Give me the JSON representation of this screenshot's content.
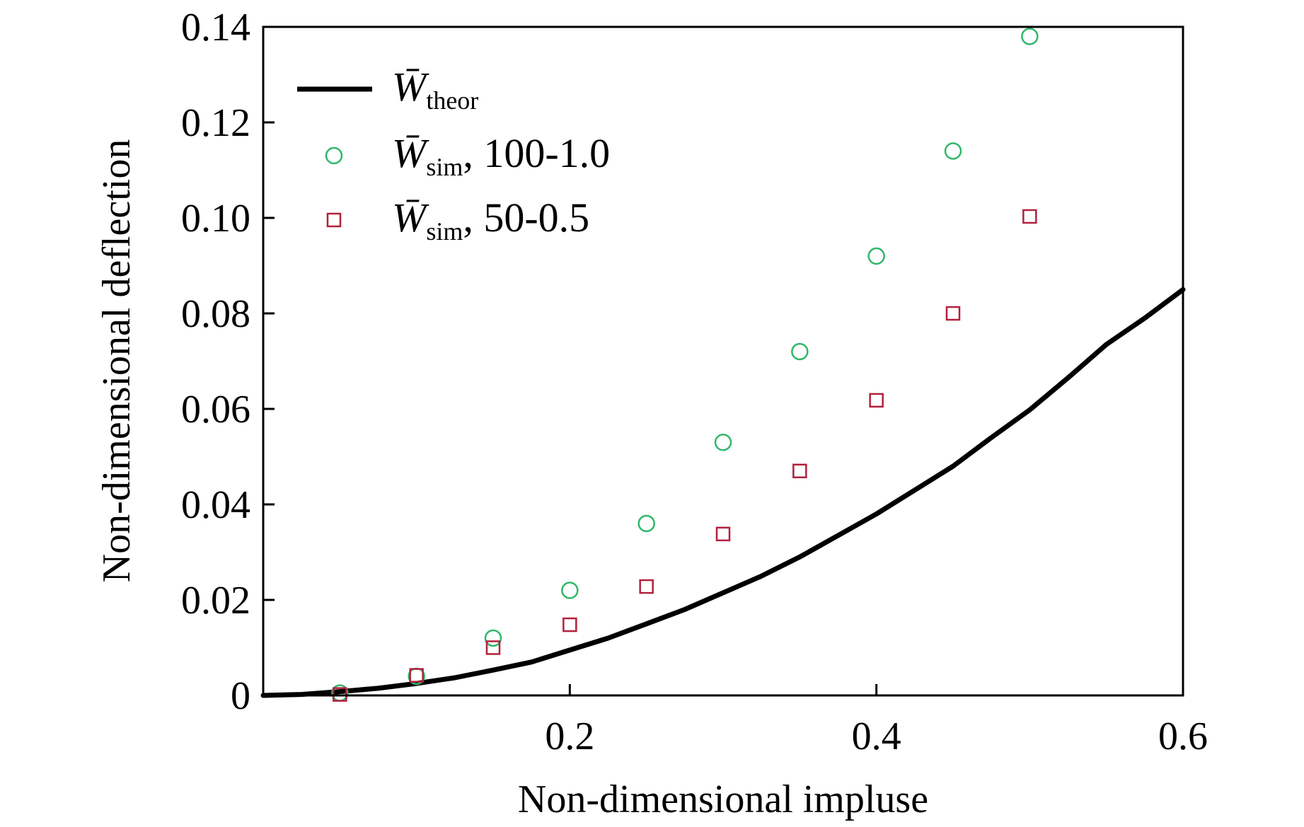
{
  "chart_data": {
    "type": "scatter",
    "xlabel": "Non-dimensional impluse",
    "ylabel": "Non-dimensional deflection",
    "xlim": [
      0,
      0.6
    ],
    "ylim": [
      0,
      0.14
    ],
    "xticks": [
      {
        "value": 0.2,
        "label": "0.2"
      },
      {
        "value": 0.4,
        "label": "0.4"
      },
      {
        "value": 0.6,
        "label": "0.6"
      }
    ],
    "yticks": [
      {
        "value": 0,
        "label": "0"
      },
      {
        "value": 0.02,
        "label": "0.02"
      },
      {
        "value": 0.04,
        "label": "0.04"
      },
      {
        "value": 0.06,
        "label": "0.06"
      },
      {
        "value": 0.08,
        "label": "0.08"
      },
      {
        "value": 0.1,
        "label": "0.10"
      },
      {
        "value": 0.12,
        "label": "0.12"
      },
      {
        "value": 0.14,
        "label": "0.14"
      }
    ],
    "grid": false,
    "legend_position": "top-left",
    "series": [
      {
        "name_main": "W̄",
        "name_sub": "theor",
        "name_tail": "",
        "type": "line",
        "marker": "none",
        "color": "#000000",
        "x": [
          0,
          0.025,
          0.05,
          0.075,
          0.1,
          0.125,
          0.15,
          0.175,
          0.2,
          0.225,
          0.25,
          0.275,
          0.3,
          0.325,
          0.35,
          0.375,
          0.4,
          0.425,
          0.45,
          0.475,
          0.5,
          0.525,
          0.55,
          0.575,
          0.6
        ],
        "y": [
          0,
          0.0002,
          0.0008,
          0.0015,
          0.0025,
          0.0037,
          0.0053,
          0.007,
          0.0095,
          0.012,
          0.015,
          0.018,
          0.0215,
          0.025,
          0.029,
          0.0335,
          0.038,
          0.043,
          0.048,
          0.054,
          0.0598,
          0.0665,
          0.0735,
          0.079,
          0.085
        ]
      },
      {
        "name_main": "W̄",
        "name_sub": "sim",
        "name_tail": ", 100-1.0",
        "type": "scatter",
        "marker": "circle",
        "color": "#2fb86a",
        "x": [
          0.05,
          0.1,
          0.15,
          0.2,
          0.25,
          0.3,
          0.35,
          0.4,
          0.45,
          0.5
        ],
        "y": [
          0.0005,
          0.004,
          0.012,
          0.022,
          0.036,
          0.053,
          0.072,
          0.092,
          0.114,
          0.138
        ]
      },
      {
        "name_main": "W̄",
        "name_sub": "sim",
        "name_tail": ", 50-0.5",
        "type": "scatter",
        "marker": "square",
        "color": "#b2203c",
        "x": [
          0.05,
          0.1,
          0.15,
          0.2,
          0.25,
          0.3,
          0.35,
          0.4,
          0.45,
          0.5
        ],
        "y": [
          0.0002,
          0.0042,
          0.01,
          0.0148,
          0.0228,
          0.0338,
          0.047,
          0.0618,
          0.08,
          0.1003
        ]
      }
    ]
  }
}
